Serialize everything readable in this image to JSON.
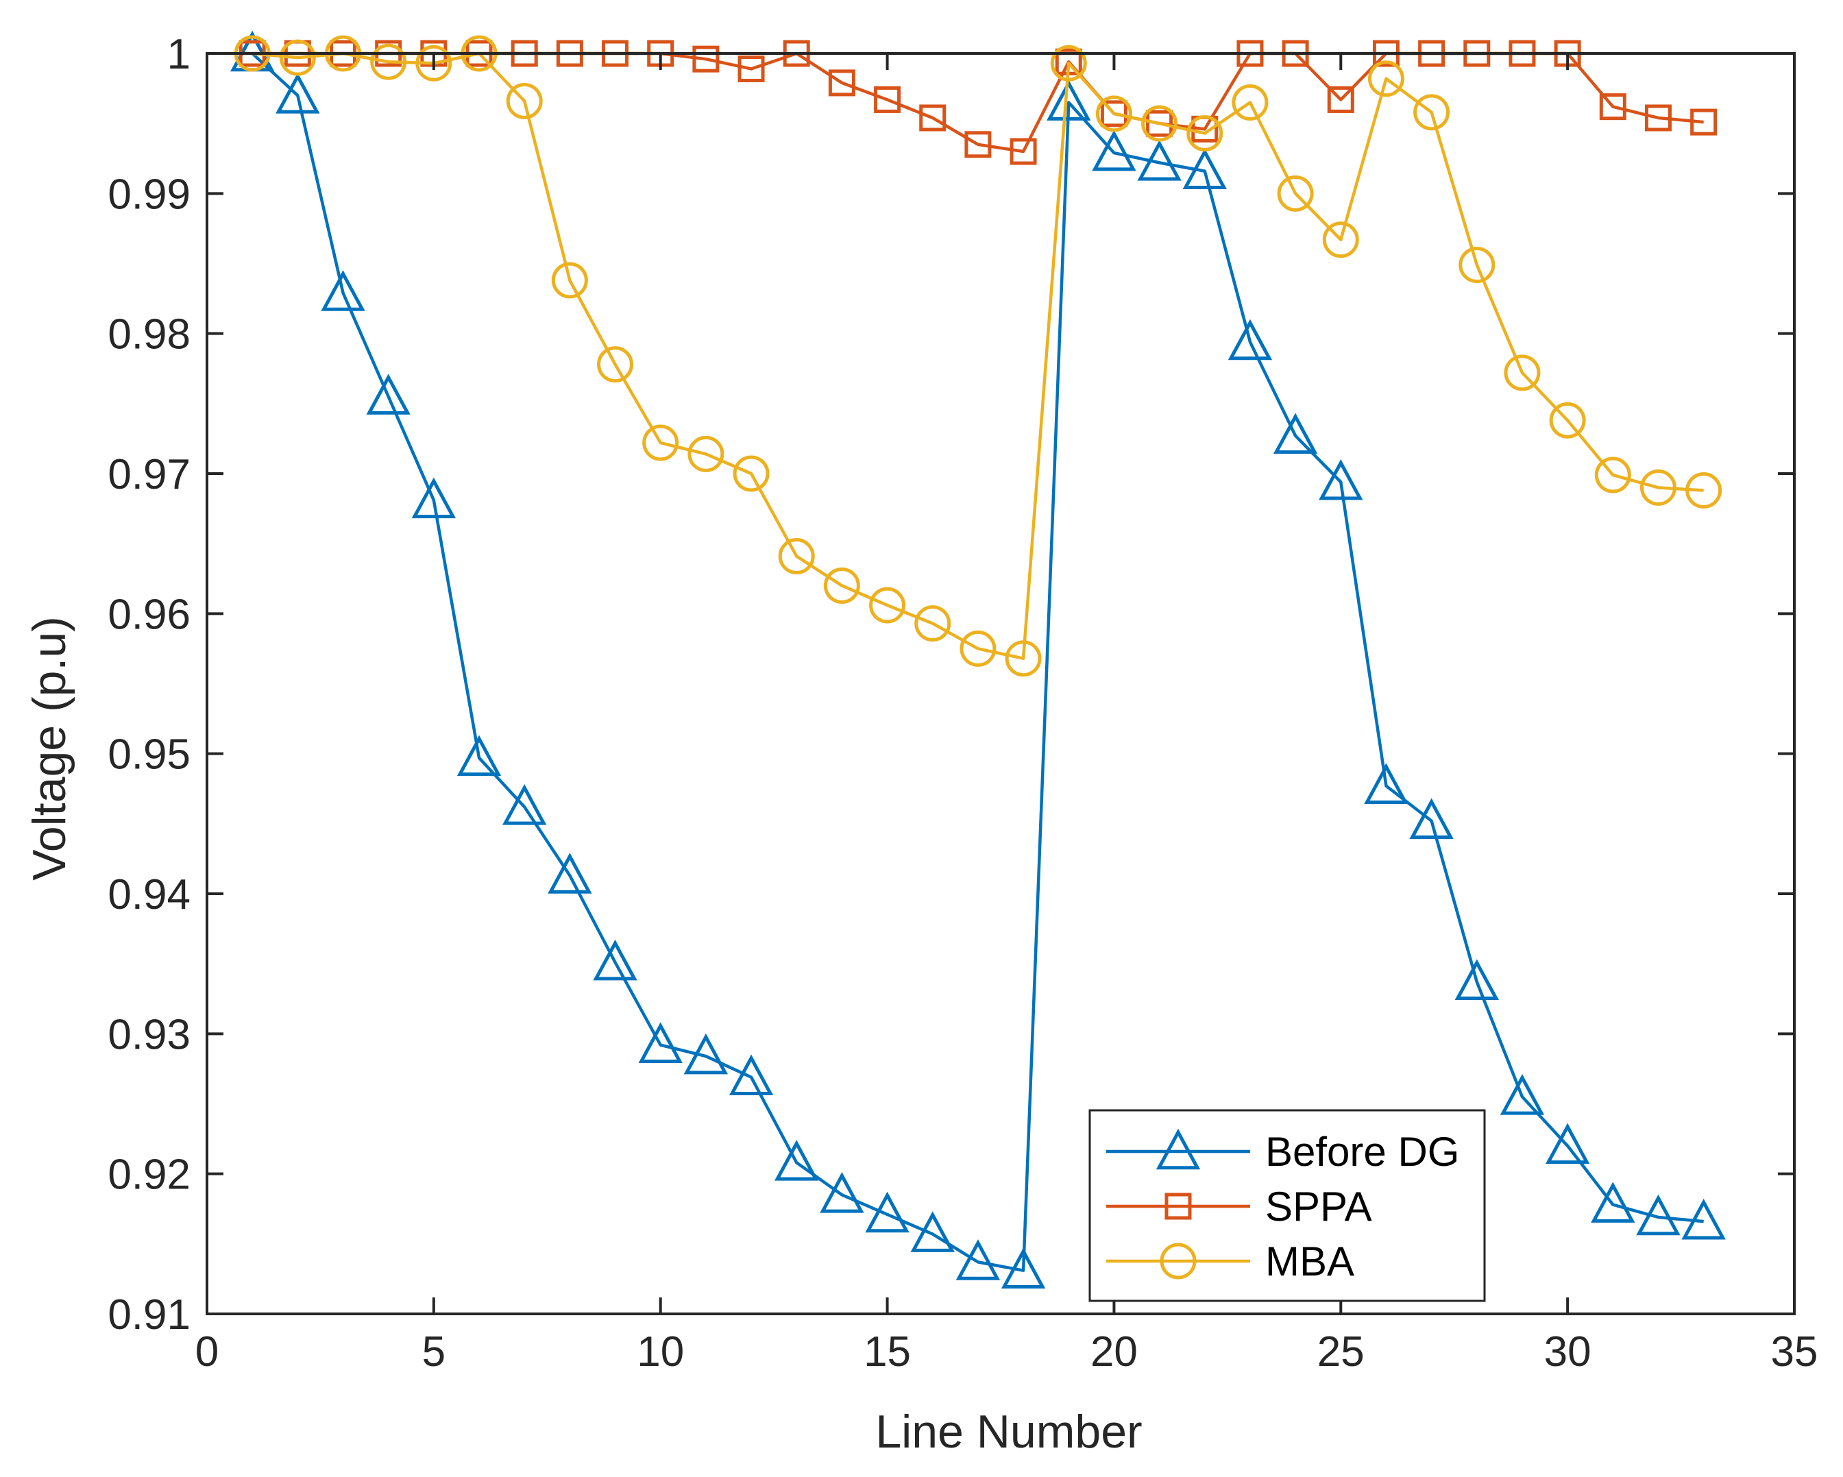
{
  "chart_data": {
    "type": "line",
    "title": "",
    "xlabel": "Line Number",
    "ylabel": "Voltage (p.u)",
    "xlim": [
      0,
      35
    ],
    "ylim": [
      0.91,
      1.0
    ],
    "xticks": [
      0,
      5,
      10,
      15,
      20,
      25,
      30,
      35
    ],
    "yticks": [
      0.91,
      0.92,
      0.93,
      0.94,
      0.95,
      0.96,
      0.97,
      0.98,
      0.99,
      1
    ],
    "xtick_labels": [
      "0",
      "5",
      "10",
      "15",
      "20",
      "25",
      "30",
      "35"
    ],
    "ytick_labels": [
      "0.91",
      "0.92",
      "0.93",
      "0.94",
      "0.95",
      "0.96",
      "0.97",
      "0.98",
      "0.99",
      "1"
    ],
    "grid": false,
    "legend_position": "bottom-right",
    "x": [
      1,
      2,
      3,
      4,
      5,
      6,
      7,
      8,
      9,
      10,
      11,
      12,
      13,
      14,
      15,
      16,
      17,
      18,
      19,
      20,
      21,
      22,
      23,
      24,
      25,
      26,
      27,
      28,
      29,
      30,
      31,
      32,
      33
    ],
    "series": [
      {
        "name": "Before DG",
        "color": "#0072BD",
        "marker": "triangle",
        "values": [
          1.0,
          0.997,
          0.9829,
          0.9755,
          0.9681,
          0.9497,
          0.9462,
          0.9413,
          0.9351,
          0.9292,
          0.9284,
          0.9269,
          0.9208,
          0.9185,
          0.9171,
          0.9157,
          0.9137,
          0.9131,
          0.9965,
          0.9929,
          0.9922,
          0.9916,
          0.9794,
          0.9727,
          0.9694,
          0.9477,
          0.9452,
          0.9337,
          0.9255,
          0.922,
          0.9178,
          0.9169,
          0.9166
        ]
      },
      {
        "name": "SPPA",
        "color": "#D95319",
        "marker": "square",
        "values": [
          1.0,
          1.0,
          1.0,
          1.0,
          1.0,
          1.0,
          1.0,
          1.0,
          1.0,
          1.0,
          0.9996,
          0.9989,
          1.0,
          0.9979,
          0.9967,
          0.9954,
          0.9935,
          0.993,
          0.9994,
          0.9957,
          0.995,
          0.9946,
          1.0,
          1.0,
          0.9967,
          1.0,
          1.0,
          1.0,
          1.0,
          1.0,
          0.9962,
          0.9954,
          0.9951
        ]
      },
      {
        "name": "MBA",
        "color": "#EDB120",
        "marker": "circle",
        "values": [
          1.0,
          0.9997,
          1.0,
          0.9994,
          0.9993,
          1.0,
          0.9966,
          0.9838,
          0.9778,
          0.9722,
          0.9714,
          0.97,
          0.9641,
          0.962,
          0.9606,
          0.9593,
          0.9575,
          0.9568,
          0.9993,
          0.9957,
          0.995,
          0.9943,
          0.9965,
          0.99,
          0.9867,
          0.9982,
          0.9958,
          0.9849,
          0.9772,
          0.9738,
          0.9699,
          0.969,
          0.9688
        ]
      }
    ]
  }
}
